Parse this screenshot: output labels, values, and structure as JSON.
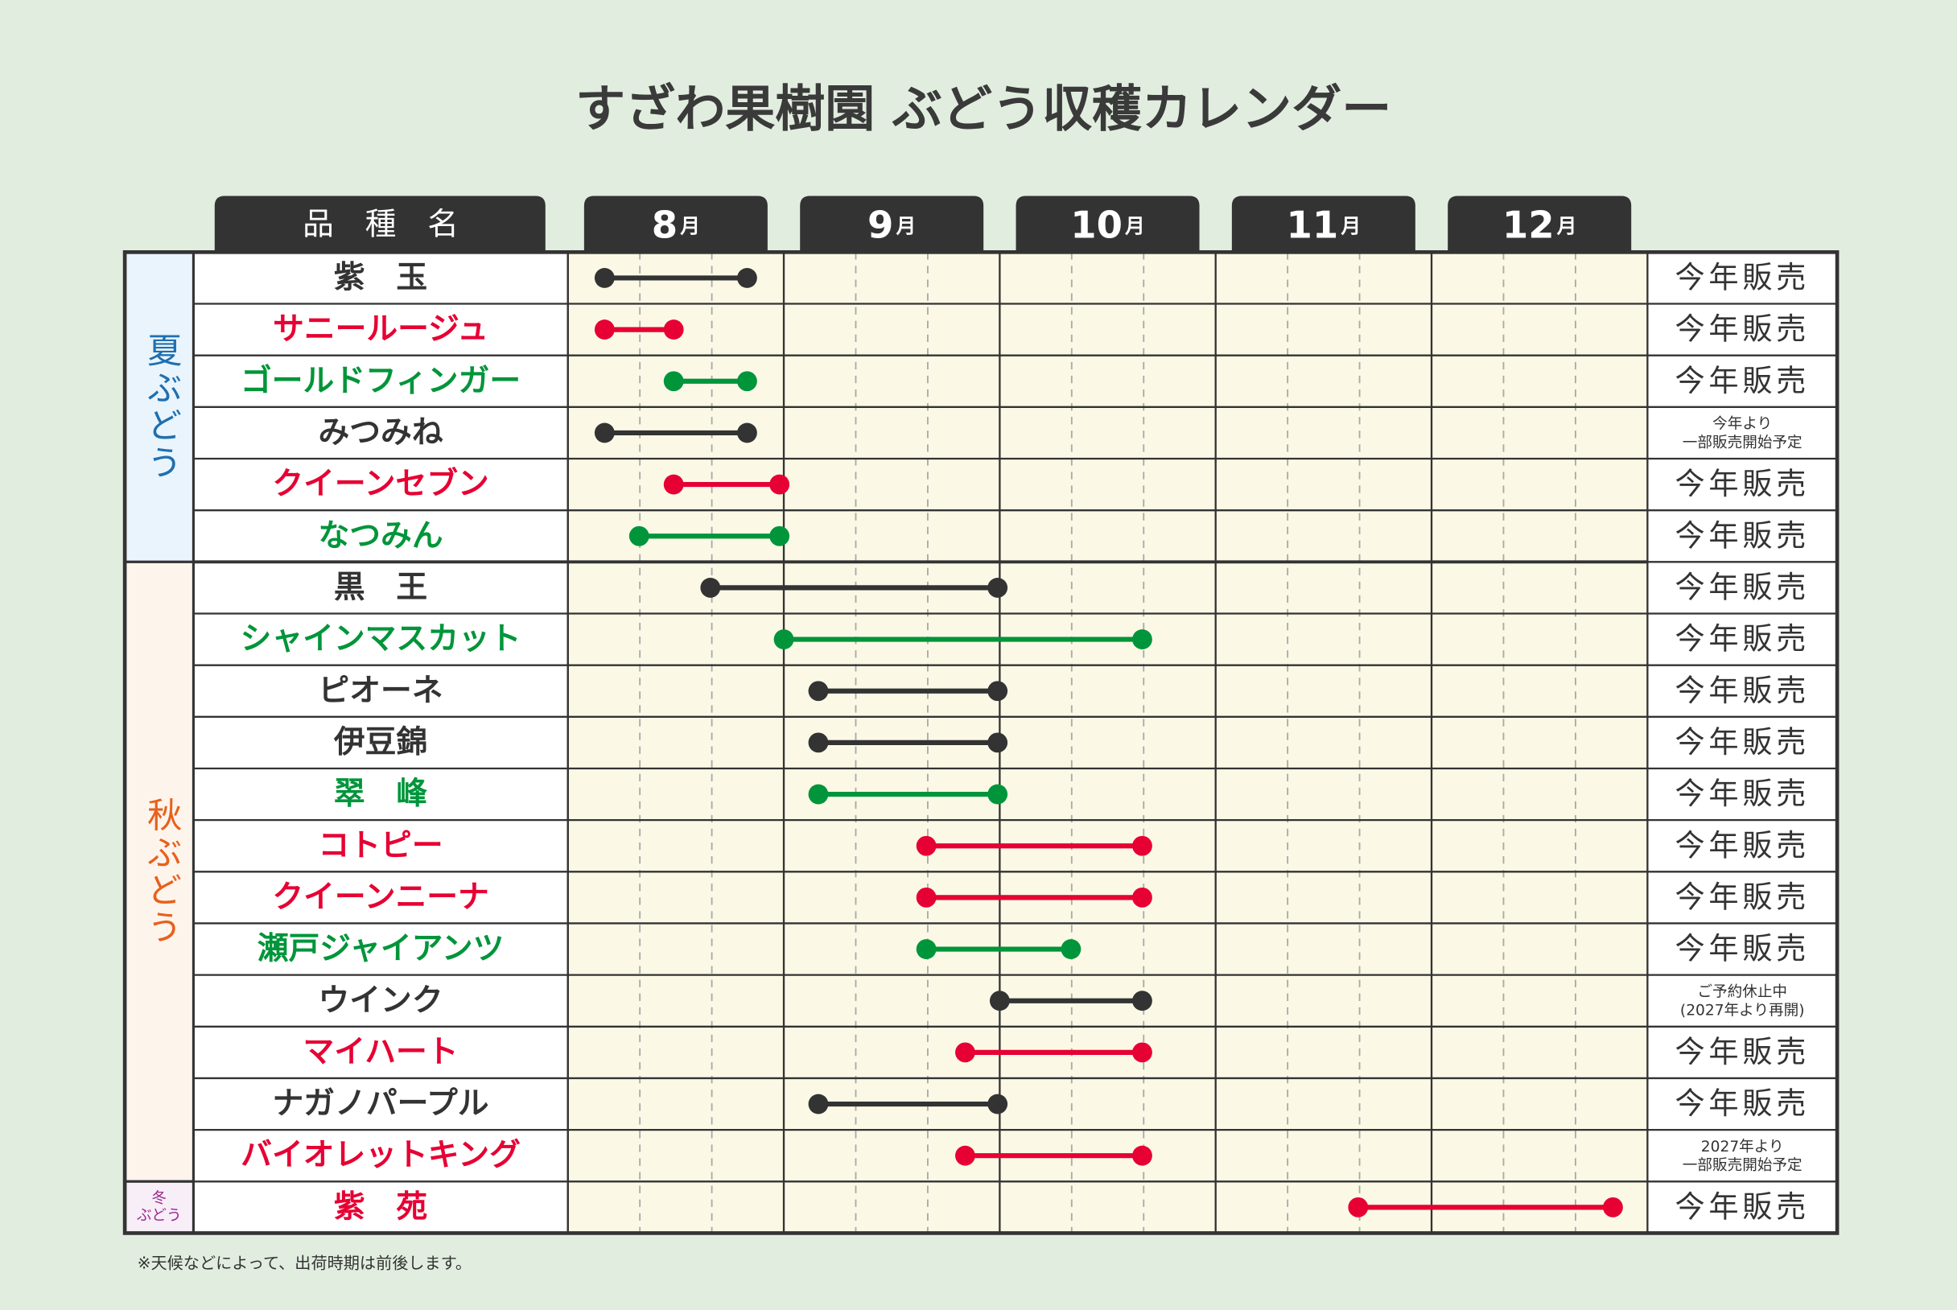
{
  "title": "すざわ果樹園 ぶどう収穫カレンダー",
  "name_header": "品　種　名",
  "xlim": [
    8,
    13
  ],
  "months": [
    {
      "value": 8,
      "number": "8",
      "unit": "月"
    },
    {
      "value": 9,
      "number": "9",
      "unit": "月"
    },
    {
      "value": 10,
      "number": "10",
      "unit": "月"
    },
    {
      "value": 11,
      "number": "11",
      "unit": "月"
    },
    {
      "value": 12,
      "number": "12",
      "unit": "月"
    }
  ],
  "groups": [
    {
      "label": "夏ぶどう",
      "color": "#1f6fb0",
      "background": "#e9f4fc",
      "rows": [
        0,
        5
      ]
    },
    {
      "label": "秋ぶどう",
      "color": "#e8601c",
      "background": "#fdf4ec",
      "rows": [
        6,
        17
      ]
    },
    {
      "label": [
        "冬",
        "ぶどう"
      ],
      "color": "#9b2a8e",
      "background": "#f7eef8",
      "rows": [
        18,
        18
      ]
    }
  ],
  "rows": [
    {
      "name": "紫　玉",
      "color": "#333333",
      "start": 8.17,
      "end": 8.83,
      "status": [
        "今年販売"
      ]
    },
    {
      "name": "サニールージュ",
      "color": "#e60033",
      "start": 8.17,
      "end": 8.49,
      "status": [
        "今年販売"
      ]
    },
    {
      "name": "ゴールドフィンガー",
      "color": "#00953a",
      "start": 8.49,
      "end": 8.83,
      "status": [
        "今年販売"
      ]
    },
    {
      "name": "みつみね",
      "color": "#333333",
      "start": 8.17,
      "end": 8.83,
      "status": [
        "今年より",
        "一部販売開始予定"
      ]
    },
    {
      "name": "クイーンセブン",
      "color": "#e60033",
      "start": 8.49,
      "end": 8.98,
      "status": [
        "今年販売"
      ]
    },
    {
      "name": "なつみん",
      "color": "#00953a",
      "start": 8.33,
      "end": 8.98,
      "status": [
        "今年販売"
      ]
    },
    {
      "name": "黒　王",
      "color": "#333333",
      "start": 8.66,
      "end": 9.99,
      "status": [
        "今年販売"
      ]
    },
    {
      "name": "シャインマスカット",
      "color": "#00953a",
      "start": 9.0,
      "end": 10.66,
      "status": [
        "今年販売"
      ]
    },
    {
      "name": "ピオーネ",
      "color": "#333333",
      "start": 9.16,
      "end": 9.99,
      "status": [
        "今年販売"
      ]
    },
    {
      "name": "伊豆錦",
      "color": "#333333",
      "start": 9.16,
      "end": 9.99,
      "status": [
        "今年販売"
      ]
    },
    {
      "name": "翠　峰",
      "color": "#00953a",
      "start": 9.16,
      "end": 9.99,
      "status": [
        "今年販売"
      ]
    },
    {
      "name": "コトピー",
      "color": "#e60033",
      "start": 9.66,
      "end": 10.66,
      "status": [
        "今年販売"
      ]
    },
    {
      "name": "クイーンニーナ",
      "color": "#e60033",
      "start": 9.66,
      "end": 10.66,
      "status": [
        "今年販売"
      ]
    },
    {
      "name": "瀬戸ジャイアンツ",
      "color": "#00953a",
      "start": 9.66,
      "end": 10.33,
      "status": [
        "今年販売"
      ]
    },
    {
      "name": "ウインク",
      "color": "#333333",
      "start": 10.0,
      "end": 10.66,
      "status": [
        "ご予約休止中",
        "(2027年より再開)"
      ]
    },
    {
      "name": "マイハート",
      "color": "#e60033",
      "start": 9.84,
      "end": 10.66,
      "status": [
        "今年販売"
      ]
    },
    {
      "name": "ナガノパープル",
      "color": "#333333",
      "start": 9.16,
      "end": 9.99,
      "status": [
        "今年販売"
      ]
    },
    {
      "name": "バイオレットキング",
      "color": "#e60033",
      "start": 9.84,
      "end": 10.66,
      "status": [
        "2027年より",
        "一部販売開始予定"
      ]
    },
    {
      "name": "紫　苑",
      "color": "#e60033",
      "start": 11.66,
      "end": 12.84,
      "status": [
        "今年販売"
      ]
    }
  ],
  "footnote": "※天候などによって、出荷時期は前後します。"
}
